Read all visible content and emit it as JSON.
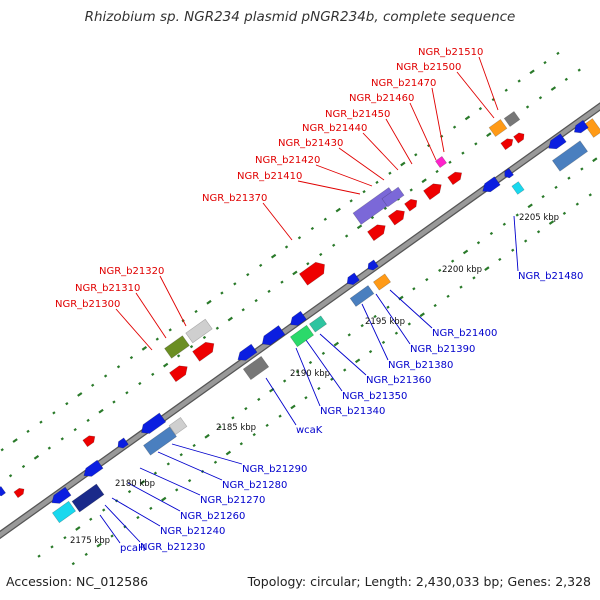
{
  "title": "Rhizobium sp. NGR234 plasmid pNGR234b, complete sequence",
  "footer": {
    "accession": "Accession: NC_012586",
    "summary": "Topology: circular; Length: 2,430,033 bp; Genes: 2,328"
  },
  "colors": {
    "backbone": "#999999",
    "backbone_edge": "#555555",
    "tick": "#2a7a2a",
    "label_red": "#e00000",
    "label_blue": "#0000cc",
    "scale_text": "#111111"
  },
  "scale_labels": [
    "2175 kbp",
    "2180 kbp",
    "2185 kbp",
    "2190 kbp",
    "2195 kbp",
    "2200 kbp",
    "2205 kbp"
  ],
  "labels_upper": [
    "NGR_b21300",
    "NGR_b21310",
    "NGR_b21320",
    "NGR_b21370",
    "NGR_b21410",
    "NGR_b21420",
    "NGR_b21430",
    "NGR_b21440",
    "NGR_b21450",
    "NGR_b21460",
    "NGR_b21470",
    "NGR_b21500",
    "NGR_b21510"
  ],
  "labels_lower": [
    "pcaH",
    "NGR_b21230",
    "NGR_b21240",
    "NGR_b21260",
    "NGR_b21270",
    "NGR_b21280",
    "NGR_b21290",
    "wcaK",
    "NGR_b21340",
    "NGR_b21350",
    "NGR_b21360",
    "NGR_b21380",
    "NGR_b21390",
    "NGR_b21400",
    "NGR_b21480"
  ],
  "feature_colors": {
    "red": "#ee0000",
    "blue": "#0b1ee0",
    "darkblue": "#1a2a8a",
    "steel": "#4a7fbf",
    "cyan": "#19d8ee",
    "teal": "#2ec4a0",
    "green": "#2bd96a",
    "olive": "#6b8e23",
    "gray": "#777777",
    "lightgray": "#cfcfcf",
    "purple": "#7b68d8",
    "orange": "#ff9a16",
    "magenta": "#ff22cc"
  }
}
